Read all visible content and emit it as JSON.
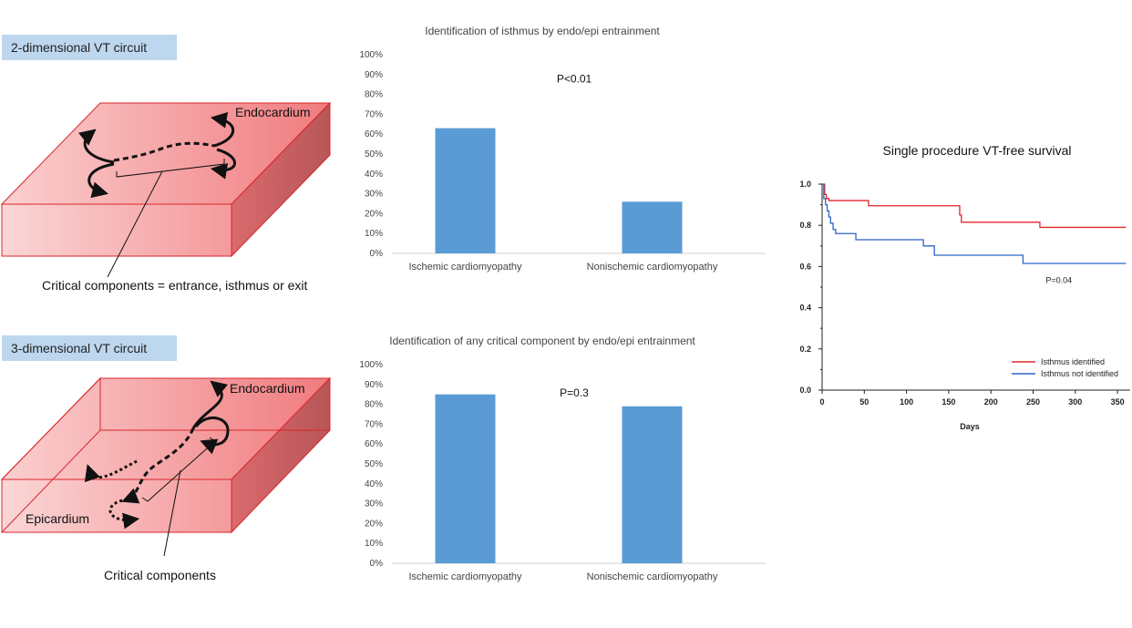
{
  "diagrams": {
    "top": {
      "label": "2-dimensional VT circuit",
      "endocardium": "Endocardium",
      "caption": "Critical components = entrance, isthmus or exit"
    },
    "bottom": {
      "label": "3-dimensional VT circuit",
      "endocardium": "Endocardium",
      "epicardium": "Epicardium",
      "caption": "Critical components"
    },
    "colors": {
      "slab_face": "#f7b6b6",
      "slab_edge": "#d9262b",
      "arrow": "#111111"
    }
  },
  "chart_data": [
    {
      "type": "bar",
      "title": "Identification  of isthmus by endo/epi  entrainment",
      "categories": [
        "Ischemic cardiomyopathy",
        "Nonischemic cardiomyopathy"
      ],
      "values": [
        63,
        26
      ],
      "ylim": [
        0,
        100
      ],
      "yticks": [
        "0%",
        "10%",
        "20%",
        "30%",
        "40%",
        "50%",
        "60%",
        "70%",
        "80%",
        "90%",
        "100%"
      ],
      "annotation": "P<0.01",
      "color": "#5b9bd5"
    },
    {
      "type": "bar",
      "title": "Identification  of any critical component  by endo/epi  entrainment",
      "categories": [
        "Ischemic cardiomyopathy",
        "Nonischemic cardiomyopathy"
      ],
      "values": [
        85,
        79
      ],
      "ylim": [
        0,
        100
      ],
      "yticks": [
        "0%",
        "10%",
        "20%",
        "30%",
        "40%",
        "50%",
        "60%",
        "70%",
        "80%",
        "90%",
        "100%"
      ],
      "annotation": "P=0.3",
      "color": "#5b9bd5"
    },
    {
      "type": "line",
      "title": "Single procedure VT-free survival",
      "xlabel": "Days",
      "ylabel": "",
      "xlim": [
        0,
        365
      ],
      "ylim": [
        0,
        1.0
      ],
      "xticks": [
        "0",
        "50",
        "100",
        "150",
        "200",
        "250",
        "300",
        "350"
      ],
      "yticks": [
        "0.0",
        "0.2",
        "0.4",
        "0.6",
        "0.8",
        "1.0"
      ],
      "annotation": "P=0.04",
      "series": [
        {
          "name": "Isthmus identified",
          "color": "#e0262b",
          "x": [
            0,
            3,
            5,
            8,
            55,
            160,
            163,
            165,
            258,
            360
          ],
          "y": [
            1.0,
            0.95,
            0.93,
            0.92,
            0.895,
            0.895,
            0.85,
            0.815,
            0.79,
            0.79
          ]
        },
        {
          "name": "Isthmus not identified",
          "color": "#2e64c8",
          "x": [
            0,
            2,
            4,
            6,
            8,
            10,
            13,
            16,
            40,
            120,
            133,
            238,
            360
          ],
          "y": [
            1.0,
            0.93,
            0.9,
            0.87,
            0.84,
            0.81,
            0.78,
            0.76,
            0.73,
            0.7,
            0.655,
            0.615,
            0.615
          ]
        }
      ]
    }
  ]
}
